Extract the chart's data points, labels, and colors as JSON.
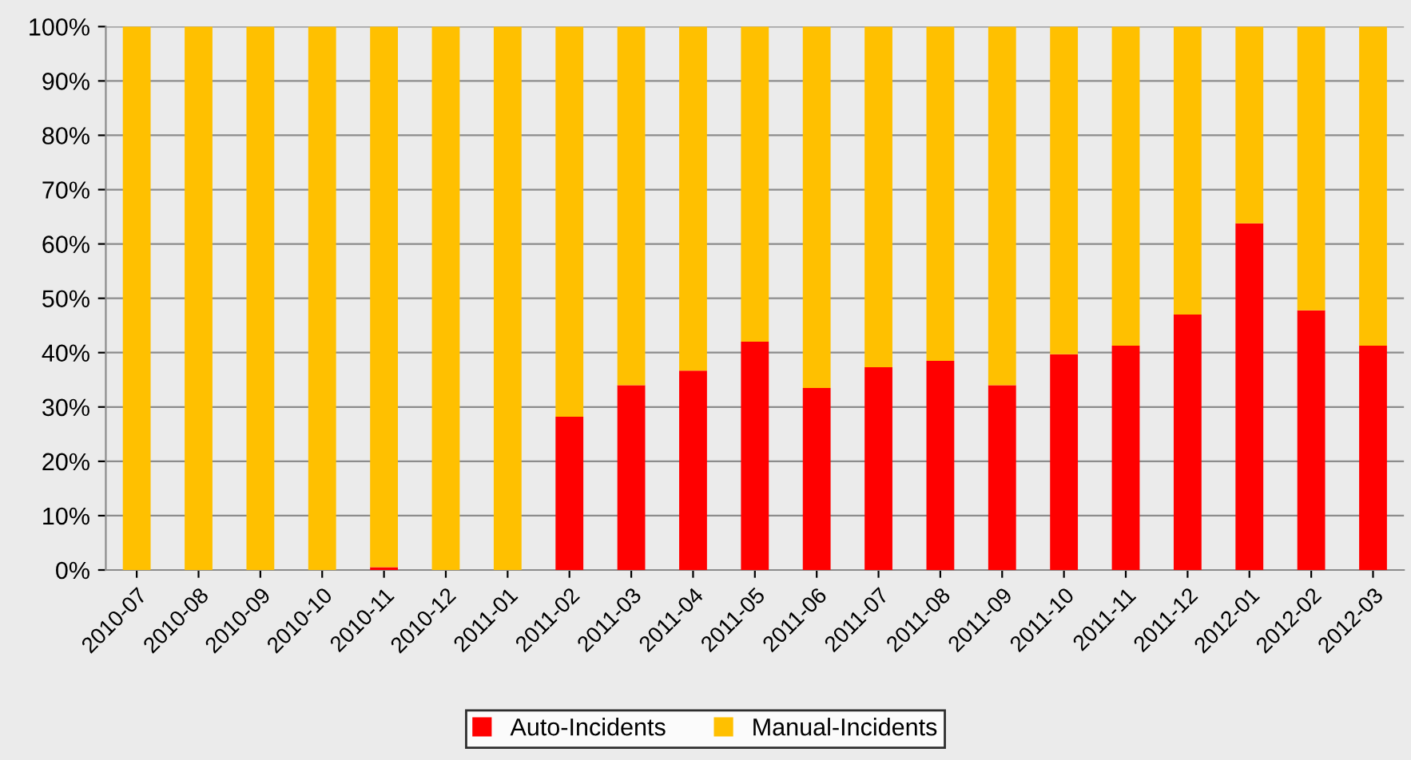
{
  "chart_data": {
    "type": "bar",
    "stacked": true,
    "categories": [
      "2010-07",
      "2010-08",
      "2010-09",
      "2010-10",
      "2010-11",
      "2010-12",
      "2011-01",
      "2011-02",
      "2011-03",
      "2011-04",
      "2011-05",
      "2011-06",
      "2011-07",
      "2011-08",
      "2011-09",
      "2011-10",
      "2011-11",
      "2011-12",
      "2012-01",
      "2012-02",
      "2012-03"
    ],
    "series": [
      {
        "name": "Auto-Incidents",
        "color": "#ff0000",
        "values": [
          0,
          0,
          0,
          0,
          0.5,
          0,
          0,
          28.2,
          34,
          36.7,
          42,
          33.5,
          37.3,
          38.5,
          34,
          39.7,
          41.3,
          47,
          63.8,
          47.8,
          41.3
        ]
      },
      {
        "name": "Manual-Incidents",
        "color": "#ffc000",
        "values": [
          100,
          100,
          100,
          100,
          99.5,
          100,
          100,
          71.8,
          66,
          63.3,
          58,
          66.5,
          62.7,
          61.5,
          66,
          60.3,
          58.7,
          53,
          36.2,
          52.2,
          58.7
        ]
      }
    ],
    "ylim": [
      0,
      100
    ],
    "yticks": [
      {
        "value": 0,
        "label": "0%"
      },
      {
        "value": 10,
        "label": "10%"
      },
      {
        "value": 20,
        "label": "20%"
      },
      {
        "value": 30,
        "label": "30%"
      },
      {
        "value": 40,
        "label": "40%"
      },
      {
        "value": 50,
        "label": "50%"
      },
      {
        "value": 60,
        "label": "60%"
      },
      {
        "value": 70,
        "label": "70%"
      },
      {
        "value": 80,
        "label": "80%"
      },
      {
        "value": 90,
        "label": "90%"
      },
      {
        "value": 100,
        "label": "100%"
      }
    ],
    "grid": "y",
    "legend": "bottom"
  }
}
